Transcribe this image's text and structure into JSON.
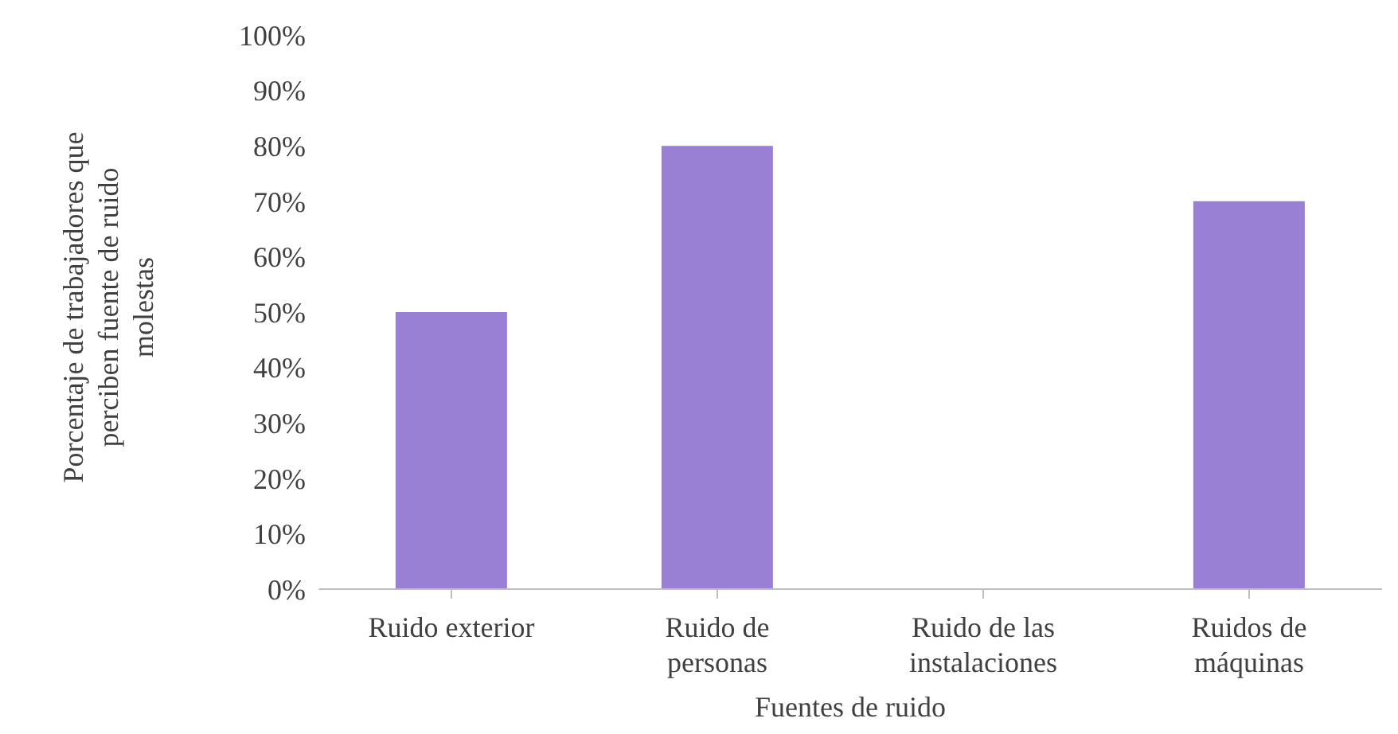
{
  "chart_data": {
    "type": "bar",
    "xlabel": "Fuentes de ruido",
    "ylabel": "Porcentaje de trabajadores que perciben fuente de ruido molestas",
    "categories": [
      "Ruido exterior",
      "Ruido de personas",
      "Ruido de las instalaciones",
      "Ruidos de máquinas"
    ],
    "values": [
      50,
      80,
      0,
      70
    ],
    "color": "#9a80d4",
    "ylim": [
      0,
      100
    ],
    "yticks": [
      {
        "value": 0,
        "label": "0%"
      },
      {
        "value": 10,
        "label": "10%"
      },
      {
        "value": 20,
        "label": "20%"
      },
      {
        "value": 30,
        "label": "30%"
      },
      {
        "value": 40,
        "label": "40%"
      },
      {
        "value": 50,
        "label": "50%"
      },
      {
        "value": 60,
        "label": "60%"
      },
      {
        "value": 70,
        "label": "70%"
      },
      {
        "value": 80,
        "label": "80%"
      },
      {
        "value": 90,
        "label": "90%"
      },
      {
        "value": 100,
        "label": "100%"
      }
    ],
    "grid": false,
    "legend": false
  }
}
